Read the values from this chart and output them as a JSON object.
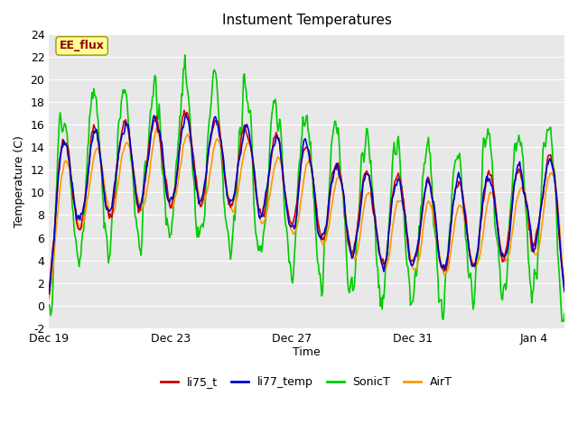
{
  "title": "Instument Temperatures",
  "xlabel": "Time",
  "ylabel": "Temperature (C)",
  "ylim": [
    -2,
    24
  ],
  "yticks": [
    -2,
    0,
    2,
    4,
    6,
    8,
    10,
    12,
    14,
    16,
    18,
    20,
    22,
    24
  ],
  "colors": {
    "li75_t": "#cc0000",
    "li77_temp": "#0000cc",
    "SonicT": "#00cc00",
    "AirT": "#ff9900"
  },
  "legend_label": "EE_flux",
  "legend_label_color": "#990000",
  "legend_box_color": "#ffff99",
  "legend_box_edge": "#999900",
  "x_tick_labels": [
    "Dec 19",
    "Dec 23",
    "Dec 27",
    "Dec 31",
    "Jan 4"
  ],
  "bg_color": "#f0f0f0",
  "plot_bg_color": "#e8e8e8",
  "line_width": 1.2
}
